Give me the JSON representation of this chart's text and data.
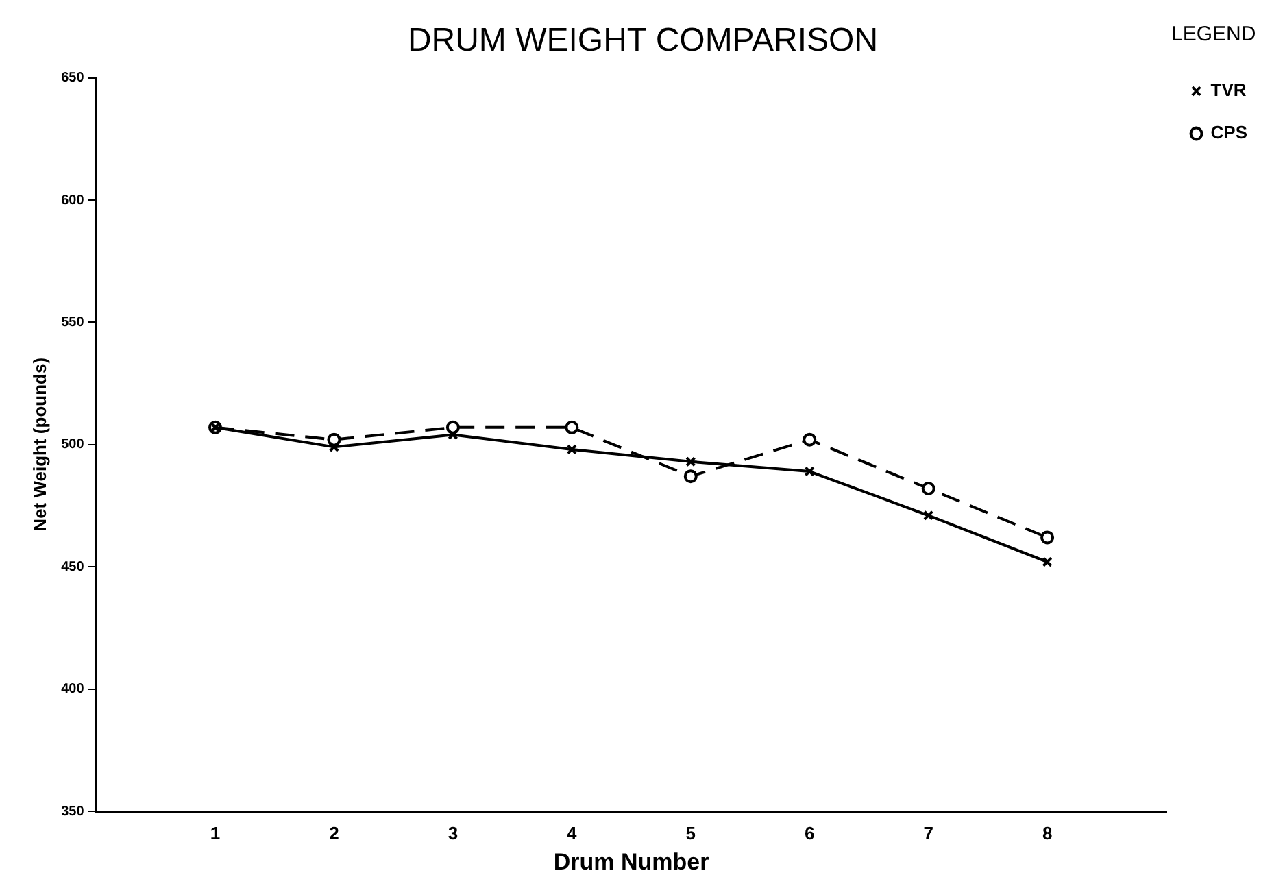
{
  "chart_data": {
    "type": "line",
    "title": "DRUM WEIGHT COMPARISON",
    "xlabel": "Drum Number",
    "ylabel": "Net Weight (pounds)",
    "legend_title": "LEGEND",
    "x": [
      1,
      2,
      3,
      4,
      5,
      6,
      7,
      8
    ],
    "series": [
      {
        "name": "TVR",
        "color": "#000000",
        "marker": "cross",
        "line_style": "solid",
        "values": [
          507,
          499,
          504,
          498,
          493,
          489,
          471,
          452
        ]
      },
      {
        "name": "CPS",
        "color": "#000000",
        "marker": "circle",
        "line_style": "dashed",
        "values": [
          507,
          502,
          507,
          507,
          487,
          502,
          482,
          462
        ]
      }
    ],
    "xlim": [
      0,
      9
    ],
    "xticks": [
      1,
      2,
      3,
      4,
      5,
      6,
      7,
      8
    ],
    "ylim": [
      350,
      650
    ],
    "yticks": [
      350,
      400,
      450,
      500,
      550,
      600,
      650
    ],
    "grid": false,
    "legend": "top right"
  }
}
